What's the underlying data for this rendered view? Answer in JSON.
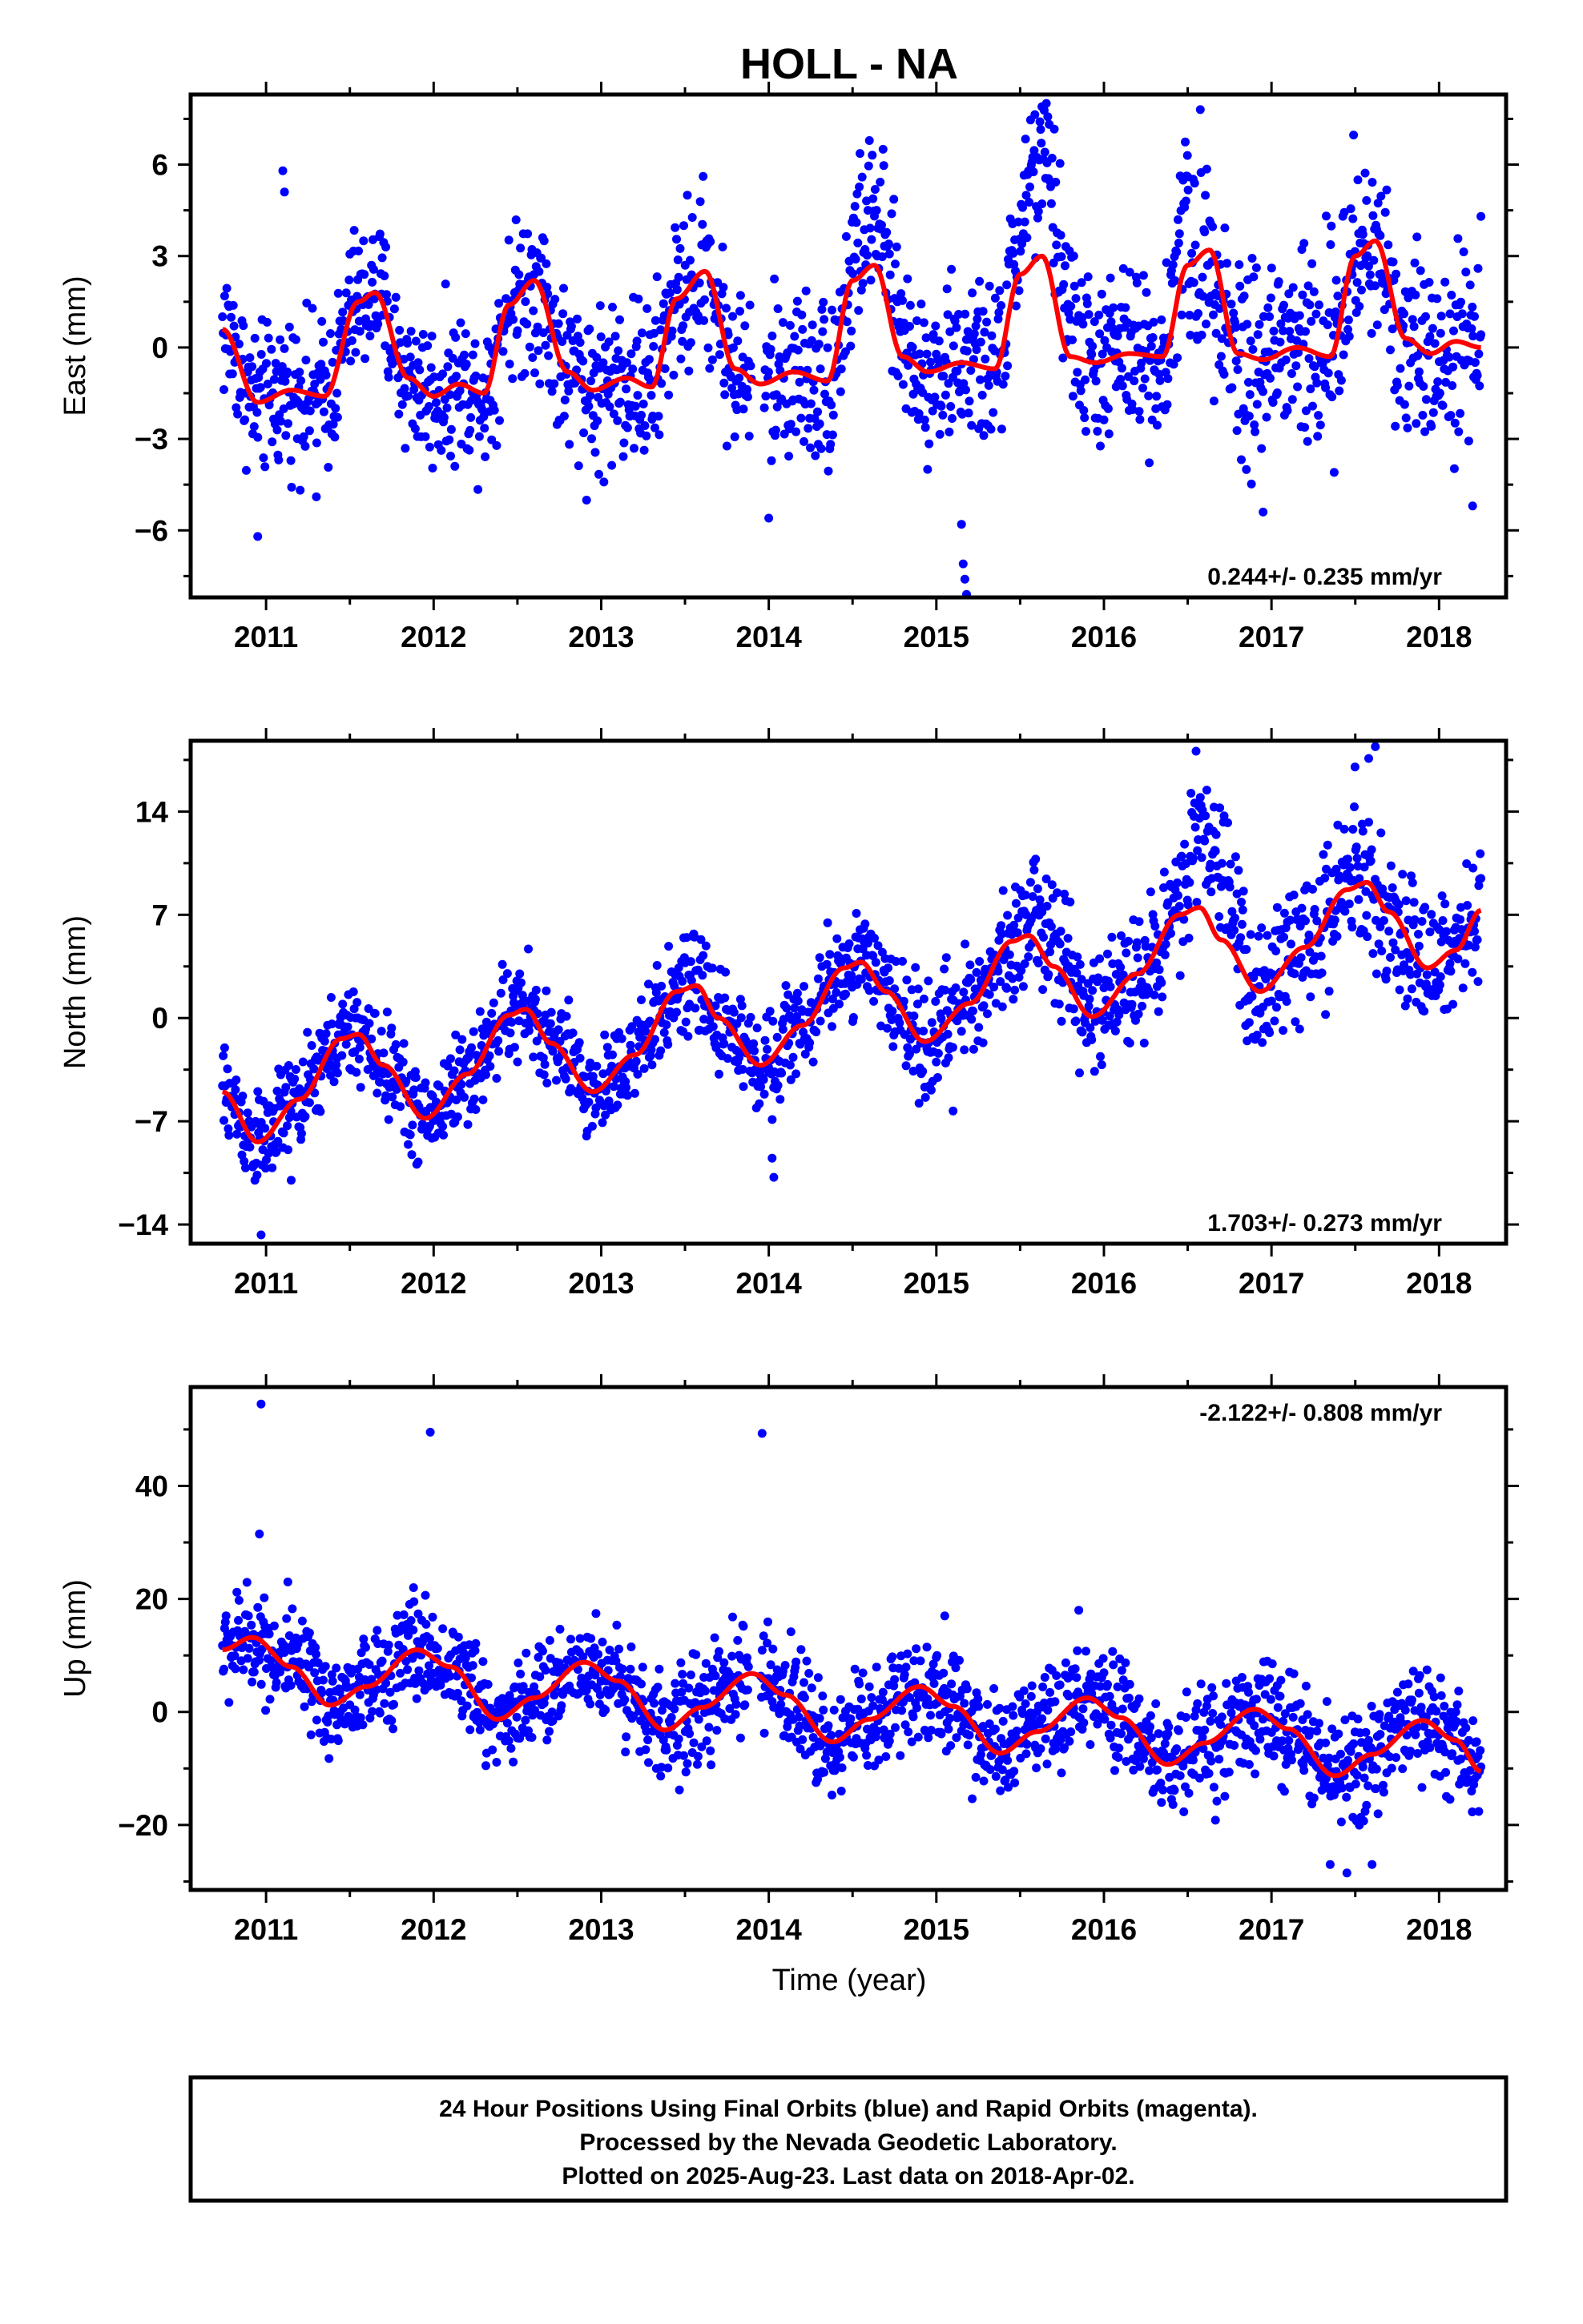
{
  "title": "HOLL - NA",
  "xlabel": "Time (year)",
  "footer": {
    "lines": [
      "24 Hour Positions Using Final Orbits (blue) and Rapid Orbits (magenta).",
      "Processed by the Nevada Geodetic Laboratory.",
      "Plotted on 2025-Aug-23. Last data on 2018-Apr-02."
    ]
  },
  "colors": {
    "points": "#0000ff",
    "model": "#ff0000",
    "frame": "#000000"
  },
  "chart_data": [
    {
      "type": "scatter",
      "ylabel": "East (mm)",
      "rate_label": "0.244+/- 0.235 mm/yr",
      "rate_position": "bottom-right",
      "xlim": [
        2010.55,
        2018.4
      ],
      "ylim": [
        -8.2,
        8.3
      ],
      "xticks": [
        2011,
        2012,
        2013,
        2014,
        2015,
        2016,
        2017,
        2018
      ],
      "xtick_labels": [
        "2011",
        "2012",
        "2013",
        "2014",
        "2015",
        "2016",
        "2017",
        "2018"
      ],
      "yticks": [
        -6,
        -3,
        0,
        3,
        6
      ],
      "ytick_labels": [
        "−6",
        "−3",
        "0",
        "3",
        "6"
      ],
      "data_start": 2010.74,
      "data_end": 2018.25,
      "model": {
        "x": [
          2010.74,
          2010.95,
          2011.15,
          2011.35,
          2011.55,
          2011.65,
          2011.85,
          2012.0,
          2012.15,
          2012.3,
          2012.45,
          2012.6,
          2012.8,
          2012.95,
          2013.15,
          2013.3,
          2013.45,
          2013.62,
          2013.8,
          2013.95,
          2014.15,
          2014.35,
          2014.5,
          2014.63,
          2014.8,
          2014.95,
          2015.15,
          2015.35,
          2015.5,
          2015.63,
          2015.8,
          2015.95,
          2016.15,
          2016.35,
          2016.5,
          2016.63,
          2016.8,
          2016.95,
          2017.15,
          2017.35,
          2017.5,
          2017.62,
          2017.8,
          2017.95,
          2018.1,
          2018.25
        ],
        "y": [
          0.6,
          -1.8,
          -1.4,
          -1.6,
          1.5,
          1.8,
          -1.0,
          -1.6,
          -1.2,
          -1.5,
          1.4,
          2.2,
          -0.8,
          -1.4,
          -1.0,
          -1.3,
          1.6,
          2.5,
          -0.7,
          -1.2,
          -0.8,
          -1.1,
          2.2,
          2.7,
          -0.3,
          -0.8,
          -0.5,
          -0.7,
          2.4,
          3.0,
          -0.3,
          -0.5,
          -0.2,
          -0.3,
          2.7,
          3.2,
          -0.2,
          -0.4,
          0.0,
          -0.3,
          3.0,
          3.5,
          0.3,
          -0.2,
          0.2,
          0.0
        ]
      },
      "scatter_model": {
        "noise": [
          1.2,
          1.2,
          1.4,
          1.4,
          1.3,
          1.4,
          1.8,
          1.6
        ],
        "seasonal_boost": [
          0,
          0,
          0,
          0,
          1.5,
          3.0,
          0,
          0
        ],
        "outliers": [
          {
            "x": 2011.1,
            "y": 5.8
          },
          {
            "x": 2011.11,
            "y": 5.1
          },
          {
            "x": 2010.95,
            "y": -6.2
          },
          {
            "x": 2011.3,
            "y": -4.9
          },
          {
            "x": 2015.15,
            "y": -5.8
          },
          {
            "x": 2015.16,
            "y": -7.1
          },
          {
            "x": 2015.17,
            "y": -7.6
          },
          {
            "x": 2015.18,
            "y": -8.1
          },
          {
            "x": 2014.0,
            "y": -5.6
          },
          {
            "x": 2015.63,
            "y": 7.9
          },
          {
            "x": 2016.5,
            "y": 5.6
          },
          {
            "x": 2018.25,
            "y": 4.3
          },
          {
            "x": 2018.2,
            "y": -5.2
          },
          {
            "x": 2016.95,
            "y": -5.4
          }
        ],
        "gaps": [
          [
            2013.9,
            2013.97
          ]
        ]
      }
    },
    {
      "type": "scatter",
      "ylabel": "North (mm)",
      "rate_label": "1.703+/- 0.273 mm/yr",
      "rate_position": "bottom-right",
      "xlim": [
        2010.55,
        2018.4
      ],
      "ylim": [
        -15.3,
        18.8
      ],
      "xticks": [
        2011,
        2012,
        2013,
        2014,
        2015,
        2016,
        2017,
        2018
      ],
      "xtick_labels": [
        "2011",
        "2012",
        "2013",
        "2014",
        "2015",
        "2016",
        "2017",
        "2018"
      ],
      "yticks": [
        -14,
        -7,
        0,
        7,
        14
      ],
      "ytick_labels": [
        "−14",
        "−7",
        "0",
        "7",
        "14"
      ],
      "data_start": 2010.74,
      "data_end": 2018.25,
      "model": {
        "x": [
          2010.74,
          2010.95,
          2011.2,
          2011.45,
          2011.55,
          2011.7,
          2011.95,
          2012.2,
          2012.45,
          2012.55,
          2012.7,
          2012.95,
          2013.2,
          2013.45,
          2013.57,
          2013.7,
          2013.95,
          2014.2,
          2014.45,
          2014.55,
          2014.7,
          2014.93,
          2015.2,
          2015.45,
          2015.55,
          2015.7,
          2015.93,
          2016.2,
          2016.45,
          2016.57,
          2016.7,
          2016.93,
          2017.2,
          2017.45,
          2017.57,
          2017.7,
          2017.93,
          2018.1,
          2018.25
        ],
        "y": [
          -5.0,
          -8.4,
          -5.5,
          -1.4,
          -1.1,
          -3.2,
          -6.8,
          -3.8,
          0.2,
          0.6,
          -1.7,
          -5.0,
          -2.5,
          1.8,
          2.2,
          0.0,
          -3.2,
          -0.5,
          3.4,
          3.8,
          1.8,
          -1.6,
          1.0,
          5.2,
          5.6,
          3.5,
          0.1,
          3.0,
          7.0,
          7.5,
          5.3,
          1.8,
          4.8,
          8.7,
          9.2,
          7.2,
          3.4,
          4.6,
          7.3
        ]
      },
      "scatter_model": {
        "noise": [
          1.6,
          1.6,
          1.7,
          1.7,
          1.8,
          2.0,
          2.4,
          2.2
        ],
        "seasonal_boost": [
          0,
          0,
          0,
          0,
          0,
          1.5,
          5.0,
          0
        ],
        "outliers": [
          {
            "x": 2010.97,
            "y": -14.7
          },
          {
            "x": 2011.15,
            "y": -11.0
          },
          {
            "x": 2014.03,
            "y": -10.8
          },
          {
            "x": 2014.02,
            "y": -9.5
          },
          {
            "x": 2015.1,
            "y": -6.3
          },
          {
            "x": 2017.62,
            "y": 18.4
          },
          {
            "x": 2017.58,
            "y": 17.6
          },
          {
            "x": 2016.58,
            "y": 14.2
          }
        ],
        "gaps": []
      }
    },
    {
      "type": "scatter",
      "ylabel": "Up (mm)",
      "rate_label": "-2.122+/- 0.808 mm/yr",
      "rate_position": "top-right",
      "xlim": [
        2010.55,
        2018.4
      ],
      "ylim": [
        -31.5,
        57.5
      ],
      "xticks": [
        2011,
        2012,
        2013,
        2014,
        2015,
        2016,
        2017,
        2018
      ],
      "xtick_labels": [
        "2011",
        "2012",
        "2013",
        "2014",
        "2015",
        "2016",
        "2017",
        "2018"
      ],
      "yticks": [
        -20,
        0,
        20,
        40
      ],
      "ytick_labels": [
        "−20",
        "0",
        "20",
        "40"
      ],
      "data_start": 2010.74,
      "data_end": 2018.25,
      "model": {
        "x": [
          2010.74,
          2010.92,
          2011.15,
          2011.38,
          2011.6,
          2011.9,
          2012.1,
          2012.38,
          2012.6,
          2012.9,
          2013.1,
          2013.38,
          2013.6,
          2013.9,
          2014.1,
          2014.38,
          2014.6,
          2014.9,
          2015.1,
          2015.38,
          2015.6,
          2015.9,
          2016.1,
          2016.38,
          2016.6,
          2016.9,
          2017.1,
          2017.38,
          2017.6,
          2017.9,
          2018.1,
          2018.25
        ],
        "y": [
          11.0,
          13.2,
          8.0,
          1.2,
          4.5,
          11.0,
          8.0,
          -1.3,
          2.5,
          8.8,
          5.5,
          -3.2,
          0.8,
          6.8,
          3.0,
          -5.3,
          -1.3,
          4.5,
          1.0,
          -7.3,
          -3.5,
          2.5,
          -1.0,
          -9.3,
          -5.5,
          0.5,
          -3.0,
          -11.3,
          -7.5,
          -1.5,
          -5.0,
          -10.5
        ]
      },
      "scatter_model": {
        "noise": [
          4.5,
          4.5,
          4.5,
          4.8,
          4.8,
          4.8,
          5.2,
          4.8
        ],
        "seasonal_boost": [
          0,
          0,
          0,
          0,
          0,
          0,
          0,
          0
        ],
        "outliers": [
          {
            "x": 2010.97,
            "y": 54.5
          },
          {
            "x": 2010.96,
            "y": 31.5
          },
          {
            "x": 2011.13,
            "y": 23.0
          },
          {
            "x": 2011.98,
            "y": 49.5
          },
          {
            "x": 2013.96,
            "y": 49.3
          },
          {
            "x": 2017.35,
            "y": -27.0
          },
          {
            "x": 2017.45,
            "y": -28.5
          },
          {
            "x": 2017.6,
            "y": -27.0
          },
          {
            "x": 2015.05,
            "y": 17.0
          },
          {
            "x": 2015.85,
            "y": 18.0
          },
          {
            "x": 2011.88,
            "y": 22.0
          }
        ],
        "gaps": [
          [
            2013.88,
            2013.95
          ]
        ]
      }
    }
  ]
}
